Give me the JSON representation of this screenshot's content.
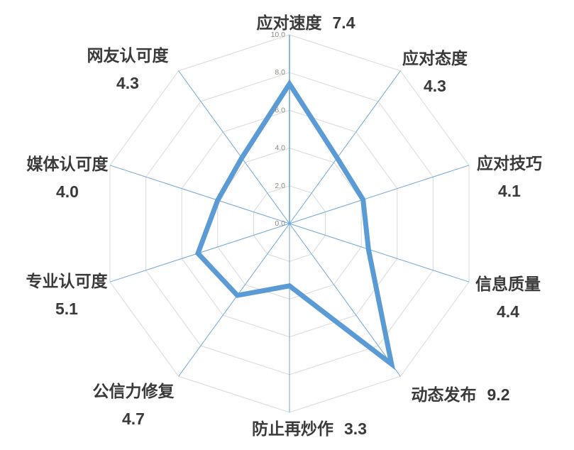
{
  "chart_data": {
    "type": "radar",
    "title": "",
    "legend": "none",
    "grid": true,
    "categories": [
      "应对速度",
      "应对态度",
      "应对技巧",
      "信息质量",
      "动态发布",
      "防止再炒作",
      "公信力修复",
      "专业认可度",
      "媒体认可度",
      "网友认可度"
    ],
    "values": [
      7.4,
      4.3,
      4.1,
      4.4,
      9.2,
      3.3,
      4.7,
      5.1,
      4.0,
      4.3
    ],
    "value_labels": [
      "7.4",
      "4.3",
      "4.1",
      "4.4",
      "9.2",
      "3.3",
      "4.7",
      "5.1",
      "4.0",
      "4.3"
    ],
    "rmin": 0,
    "rmax": 10,
    "tick_interval": 2,
    "tick_labels": [
      "0.0",
      "2.0",
      "4.0",
      "6.0",
      "8.0",
      "10.0"
    ],
    "colors": {
      "series": "#5B9BD5",
      "spoke": "#6FA7DB",
      "ring": "#D9D9D9",
      "tick_text": "#8F8A80",
      "label_text": "#3A3A3A",
      "background": "#FFFFFF"
    }
  }
}
